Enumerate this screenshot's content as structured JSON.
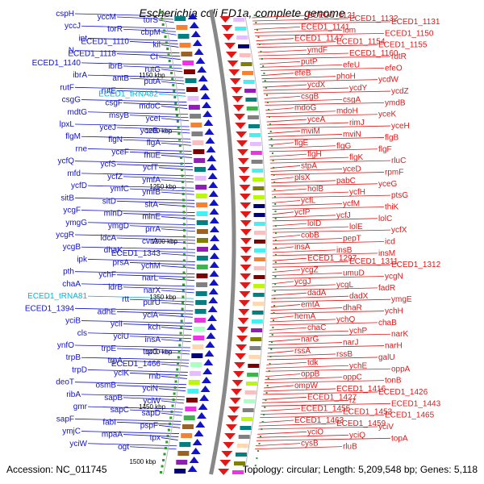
{
  "title": "Escherichia coli ED1a, complete genome",
  "footer": {
    "accession": "Accession: NC_011745",
    "topology": "Topology: circular; Length: 5,209,548 bp; Genes: 5,118"
  },
  "colors": {
    "forward": "#1212c8",
    "reverse": "#e01818",
    "rna": "#00b8d8",
    "backbone": "#888888",
    "tick": "#2a9a2a"
  },
  "ruler": [
    "1150 kbp",
    "1200 kbp",
    "1250 kbp",
    "1300 kbp",
    "1350 kbp",
    "1400 kbp",
    "1450 kbp",
    "1500 kbp"
  ],
  "left_genes": [
    "cspH",
    "yccM",
    "torS",
    "yccJ",
    "torR",
    "cbpM",
    "int",
    "ECED1_1110",
    "kil",
    "N",
    "ECED1_1118",
    "CI",
    "ECED1_1140",
    "ibrB",
    "rutG",
    "ibrA",
    "antB",
    "putA",
    "rutF",
    "rutE",
    "ECED1_tRNA82",
    "csgG",
    "csgF",
    "mdoC",
    "mdtG",
    "msyB",
    "yceI",
    "lpxL",
    "yceJ",
    "yceB",
    "flgM",
    "flgN",
    "flgA",
    "rne",
    "yceF",
    "fhuE",
    "ycfQ",
    "ycfS",
    "ycfT",
    "mfd",
    "ycfZ",
    "ymfA",
    "ycfD",
    "ymfC",
    "ymfB",
    "sitB",
    "sitD",
    "sitA",
    "ycgF",
    "minD",
    "minE",
    "ymgG",
    "ymgD",
    "prrA",
    "ycgR",
    "ldcA",
    "cvrA",
    "ycgB",
    "dhaK",
    "ECED1_1343",
    "ipk",
    "prsA",
    "ychM",
    "pth",
    "ychF",
    "narL",
    "chaA",
    "ldrB",
    "narX",
    "ECED1_tRNA81",
    "rtt",
    "purU",
    "ECED1_1394",
    "adhE",
    "yciA",
    "yciB",
    "yciI",
    "kch",
    "cls",
    "yciU",
    "insA",
    "ynfO",
    "trpE",
    "trpC",
    "trpB",
    "trpA",
    "ECED1_1466",
    "trpD",
    "yciK",
    "rnb",
    "deoT",
    "osmB",
    "yciN",
    "ribA",
    "sapB",
    "yciW",
    "gmr",
    "sapC",
    "sapD",
    "sapF",
    "fabI",
    "pspF",
    "ymjC",
    "mpaA",
    "tpx",
    "yciW",
    "ogt"
  ],
  "right_genes": [
    "ECED1_1121",
    "ECED1_1132",
    "ECED1_1131",
    "ECED1_1141",
    "lom",
    "ECED1_1150",
    "ECED1_1147",
    "ECED1_1154",
    "ECED1_1155",
    "ymdF",
    "ECED1_1160",
    "rutR",
    "putP",
    "efeU",
    "efeO",
    "efeB",
    "phoH",
    "ycdW",
    "ycdX",
    "ycdY",
    "ycdZ",
    "csgB",
    "csgA",
    "ymdB",
    "mdoG",
    "mdoH",
    "yceK",
    "yceA",
    "rimJ",
    "yceH",
    "mviM",
    "mviN",
    "flgB",
    "flgE",
    "flgG",
    "flgF",
    "flgH",
    "flgK",
    "rluC",
    "stpA",
    "yceD",
    "rpmF",
    "plsX",
    "pabC",
    "yceG",
    "holB",
    "ycfH",
    "ptsG",
    "ycfL",
    "ycfM",
    "thiK",
    "ycfP",
    "ycfJ",
    "lolC",
    "lolD",
    "lolE",
    "ycfX",
    "cobB",
    "pepT",
    "icd",
    "insA",
    "insB",
    "insM",
    "ECED1_1297",
    "ECED1_1311",
    "ECED1_1312",
    "ycgZ",
    "umuD",
    "ycgN",
    "ycgJ",
    "ycgL",
    "fadR",
    "dadA",
    "dadX",
    "ymgE",
    "emtA",
    "dhaR",
    "ychH",
    "hemA",
    "ychQ",
    "chaB",
    "chaC",
    "ychP",
    "narK",
    "narG",
    "narJ",
    "narH",
    "rssA",
    "rssB",
    "galU",
    "tdk",
    "ychE",
    "oppA",
    "oppB",
    "oppC",
    "tonB",
    "ompW",
    "ECED1_1416",
    "ECED1_1426",
    "ECED1_1427",
    "rz",
    "ECED1_1443",
    "ECED1_1455",
    "ECED1_1453",
    "ECED1_1465",
    "ECED1_1463",
    "ECED1_1459",
    "yciV",
    "yciO",
    "yciQ",
    "topA",
    "cysB",
    "rluB"
  ]
}
